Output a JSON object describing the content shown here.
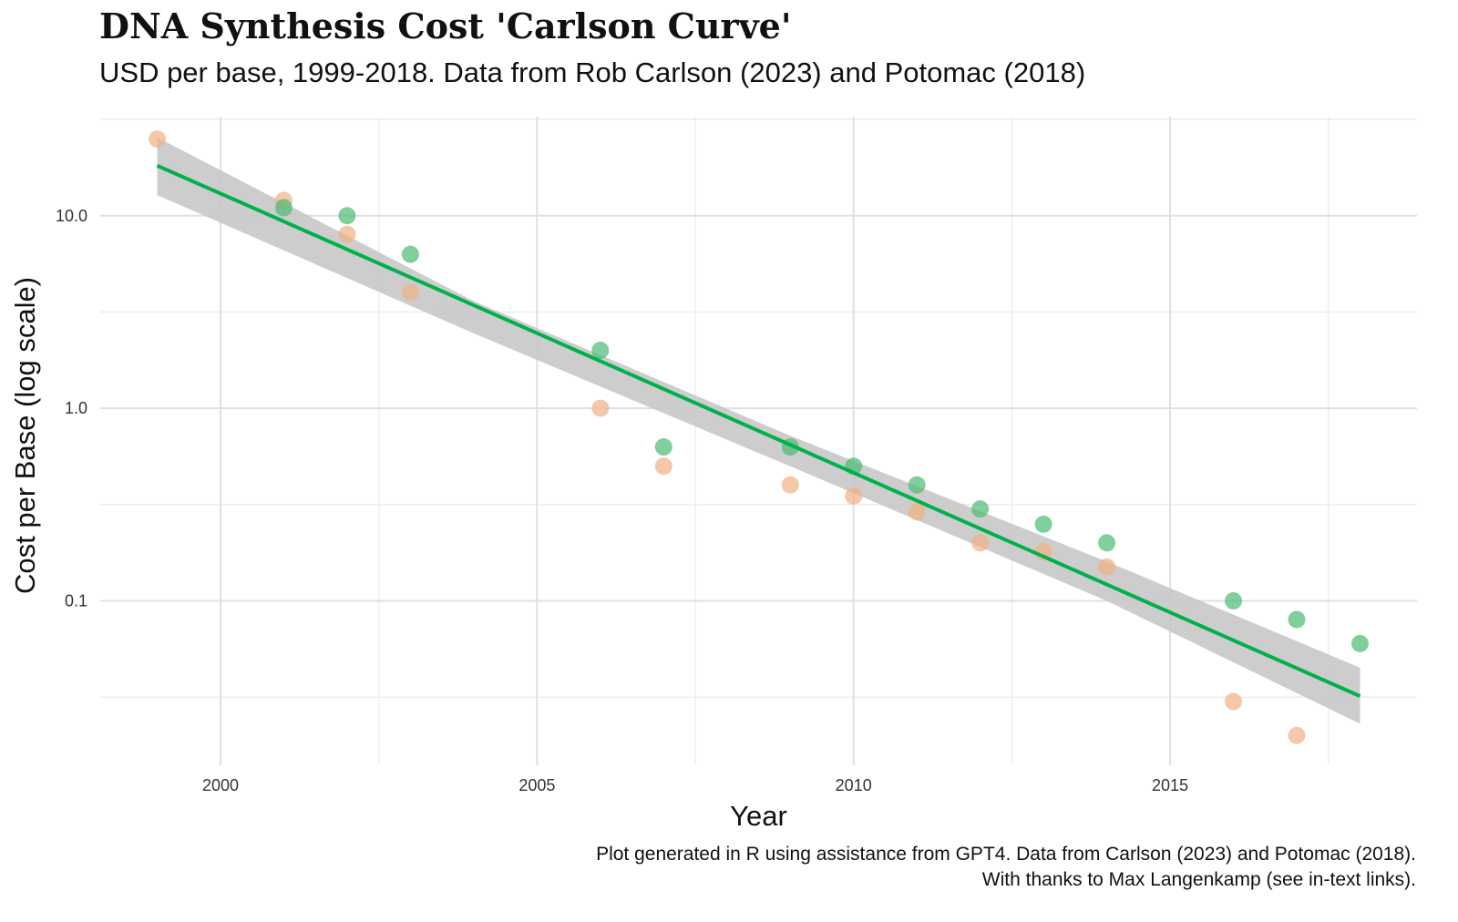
{
  "chart_data": {
    "type": "scatter",
    "title": "DNA Synthesis Cost 'Carlson Curve'",
    "subtitle": "USD per base, 1999-2018. Data from Rob Carlson (2023) and Potomac (2018)",
    "xlabel": "Year",
    "ylabel": "Cost per Base (log scale)",
    "caption": [
      "Plot generated in R using assistance from GPT4. Data from Carlson (2023) and Potomac (2018).",
      "With thanks to Max Langenkamp (see in-text links)."
    ],
    "xlim": [
      1998.1,
      2018.9
    ],
    "ylim": [
      0.014,
      32.7
    ],
    "yscale": "log10",
    "x_ticks": [
      2000,
      2005,
      2010,
      2015
    ],
    "x_tick_labels": [
      "2000",
      "2005",
      "2010",
      "2015"
    ],
    "y_ticks": [
      10,
      1,
      0.1
    ],
    "y_tick_labels": [
      "10.0",
      "1.0",
      "0.1"
    ],
    "grid": true,
    "legend": "none",
    "series": [
      {
        "name": "Carlson",
        "color": "#f0b185",
        "x": [
          1999,
          2001,
          2002,
          2003,
          2006,
          2007,
          2009,
          2010,
          2011,
          2012,
          2013,
          2014,
          2016,
          2017
        ],
        "y": [
          25,
          12,
          8,
          4,
          1.0,
          0.5,
          0.4,
          0.35,
          0.29,
          0.2,
          0.18,
          0.15,
          0.03,
          0.02
        ]
      },
      {
        "name": "Potomac",
        "color": "#4cbb74",
        "x": [
          2001,
          2002,
          2003,
          2006,
          2007,
          2009,
          2010,
          2011,
          2012,
          2013,
          2014,
          2016,
          2017,
          2018
        ],
        "y": [
          11,
          10,
          6.3,
          2.0,
          0.63,
          0.63,
          0.5,
          0.4,
          0.3,
          0.25,
          0.2,
          0.1,
          0.08,
          0.06
        ]
      }
    ],
    "fit": {
      "type": "linear on log10(y)",
      "color": "#00b04a",
      "x": [
        1999,
        2018
      ],
      "y": [
        18.2,
        0.032
      ],
      "ribbon_color": "#c8c8c8",
      "ribbon": {
        "x": [
          1999,
          2004,
          2009,
          2014,
          2018
        ],
        "lower": [
          12.8,
          2.45,
          0.5,
          0.1,
          0.023
        ],
        "upper": [
          25.5,
          3.6,
          0.72,
          0.16,
          0.045
        ]
      }
    }
  }
}
